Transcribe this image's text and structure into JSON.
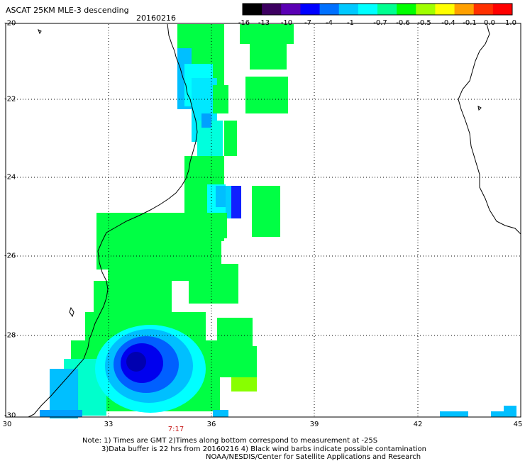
{
  "header": {
    "title": "ASCAT 25KM MLE-3 descending",
    "date": "20160216"
  },
  "colorbar": {
    "labels": [
      "-16",
      "-13",
      "-10",
      "-7",
      "-4",
      "-1",
      "-0.7",
      "-0.6",
      "-0.5",
      "-0.4",
      "-0.1",
      "0.0",
      "1.0"
    ],
    "colors": [
      "#000000",
      "#3c0060",
      "#5a00b4",
      "#0000ff",
      "#0070ff",
      "#00c8ff",
      "#00ffff",
      "#00ff90",
      "#00ff00",
      "#a0ff00",
      "#ffff00",
      "#ffa000",
      "#ff3000",
      "#ff0000"
    ]
  },
  "axes": {
    "lat_labels": [
      "-20",
      "-22",
      "-24",
      "-26",
      "-28",
      "-30"
    ],
    "lon_labels": [
      "30",
      "33",
      "36",
      "39",
      "42",
      "45"
    ]
  },
  "time_label": "7:17",
  "notes": {
    "line1": "Note: 1) Times are GMT 2)Times along bottom correspond to measurement at -25S",
    "line2": "3)Data buffer is 22 hrs from 20160216 4) Black wind barbs indicate possible contamination",
    "line3": "NOAA/NESDIS/Center for Satellite Applications and Research"
  }
}
